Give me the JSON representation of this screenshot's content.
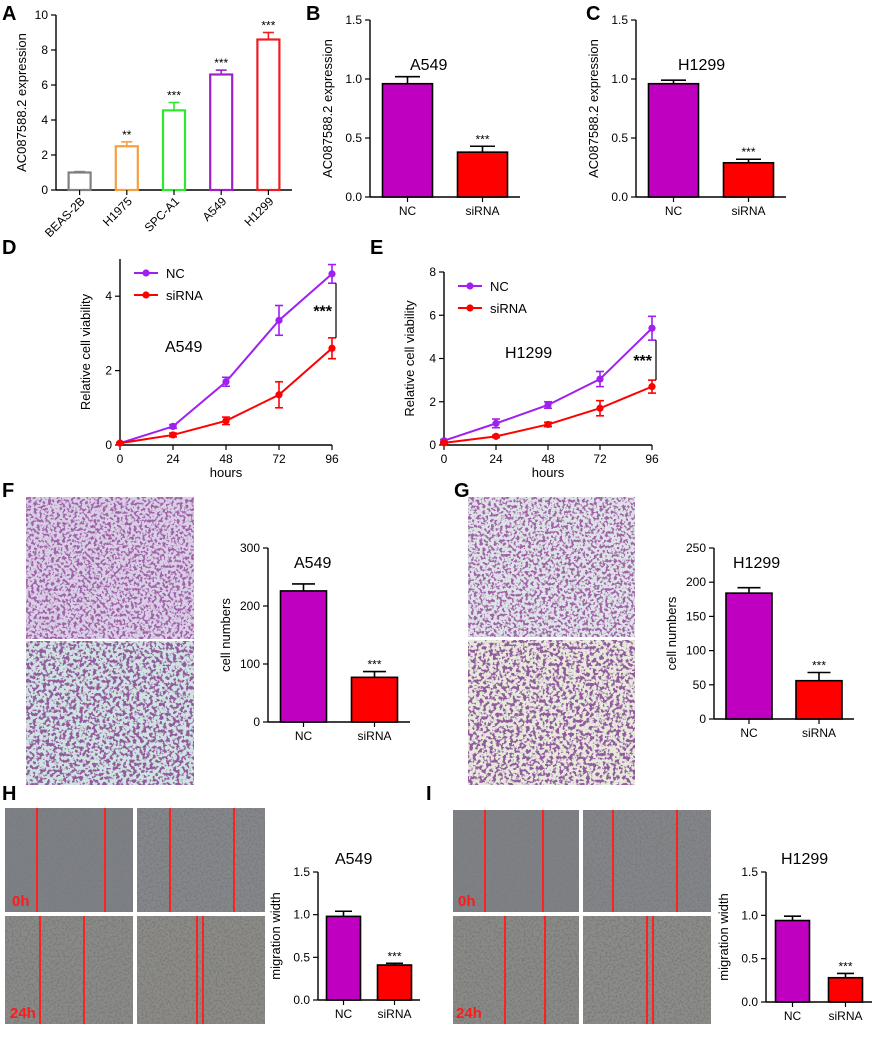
{
  "panels": {
    "A": "A",
    "B": "B",
    "C": "C",
    "D": "D",
    "E": "E",
    "F": "F",
    "G": "G",
    "H": "H",
    "I": "I"
  },
  "chart_data": [
    {
      "id": "A",
      "type": "bar",
      "ylabel": "AC087588.2 expression",
      "ylim": [
        0,
        10
      ],
      "yticks": [
        0,
        2,
        4,
        6,
        8,
        10
      ],
      "categories": [
        "BEAS-2B",
        "H1975",
        "SPC-A1",
        "A549",
        "H1299"
      ],
      "values": [
        1.0,
        2.5,
        4.55,
        6.6,
        8.6
      ],
      "errors": [
        0.05,
        0.25,
        0.45,
        0.25,
        0.4
      ],
      "colors": [
        "#808080",
        "#f5a040",
        "#2ee82e",
        "#a020c8",
        "#ee1c24"
      ],
      "significance": [
        "",
        "**",
        "***",
        "***",
        "***"
      ]
    },
    {
      "id": "B",
      "type": "bar",
      "inner_title": "A549",
      "ylabel": "AC087588.2 expression",
      "ylim": [
        0,
        1.5
      ],
      "yticks": [
        0.0,
        0.5,
        1.0,
        1.5
      ],
      "categories": [
        "NC",
        "siRNA"
      ],
      "values": [
        0.96,
        0.38
      ],
      "errors": [
        0.06,
        0.05
      ],
      "colors": [
        "#c000c0",
        "#ff0000"
      ],
      "significance": [
        "",
        "***"
      ]
    },
    {
      "id": "C",
      "type": "bar",
      "inner_title": "H1299",
      "ylabel": "AC087588.2 expression",
      "ylim": [
        0,
        1.5
      ],
      "yticks": [
        0.0,
        0.5,
        1.0,
        1.5
      ],
      "categories": [
        "NC",
        "siRNA"
      ],
      "values": [
        0.96,
        0.29
      ],
      "errors": [
        0.03,
        0.03
      ],
      "colors": [
        "#c000c0",
        "#ff0000"
      ],
      "significance": [
        "",
        "***"
      ]
    },
    {
      "id": "D",
      "type": "line",
      "inner_title": "A549",
      "xlabel": "hours",
      "ylabel": "Relative cell viability",
      "xlim": [
        0,
        96
      ],
      "ylim": [
        0,
        5
      ],
      "xticks": [
        0,
        24,
        48,
        72,
        96
      ],
      "yticks": [
        0,
        2,
        4
      ],
      "x": [
        0,
        24,
        48,
        72,
        96
      ],
      "series": [
        {
          "name": "NC",
          "color": "#a020f0",
          "values": [
            0.05,
            0.5,
            1.7,
            3.35,
            4.6
          ],
          "errors": [
            0.02,
            0.05,
            0.12,
            0.4,
            0.25
          ]
        },
        {
          "name": "siRNA",
          "color": "#ff0000",
          "values": [
            0.05,
            0.27,
            0.65,
            1.35,
            2.6
          ],
          "errors": [
            0.02,
            0.05,
            0.1,
            0.35,
            0.28
          ]
        }
      ],
      "significance": "***"
    },
    {
      "id": "E",
      "type": "line",
      "inner_title": "H1299",
      "xlabel": "hours",
      "ylabel": "Relative cell viability",
      "xlim": [
        0,
        96
      ],
      "ylim": [
        0,
        8
      ],
      "xticks": [
        0,
        24,
        48,
        72,
        96
      ],
      "yticks": [
        0,
        2,
        4,
        6,
        8
      ],
      "x": [
        0,
        24,
        48,
        72,
        96
      ],
      "series": [
        {
          "name": "NC",
          "color": "#a020f0",
          "values": [
            0.2,
            1.0,
            1.85,
            3.05,
            5.4
          ],
          "errors": [
            0.05,
            0.2,
            0.15,
            0.35,
            0.55
          ]
        },
        {
          "name": "siRNA",
          "color": "#ff0000",
          "values": [
            0.1,
            0.4,
            0.95,
            1.7,
            2.7
          ],
          "errors": [
            0.03,
            0.05,
            0.1,
            0.35,
            0.3
          ]
        }
      ],
      "significance": "***"
    },
    {
      "id": "F",
      "type": "bar",
      "inner_title": "A549",
      "ylabel": "cell numbers",
      "ylim": [
        0,
        300
      ],
      "yticks": [
        0,
        100,
        200,
        300
      ],
      "categories": [
        "NC",
        "siRNA"
      ],
      "values": [
        226,
        77
      ],
      "errors": [
        12,
        10
      ],
      "colors": [
        "#c000c0",
        "#ff0000"
      ],
      "significance": [
        "",
        "***"
      ]
    },
    {
      "id": "G",
      "type": "bar",
      "inner_title": "H1299",
      "ylabel": "cell numbers",
      "ylim": [
        0,
        250
      ],
      "yticks": [
        0,
        50,
        100,
        150,
        200,
        250
      ],
      "categories": [
        "NC",
        "siRNA"
      ],
      "values": [
        184,
        56
      ],
      "errors": [
        8,
        12
      ],
      "colors": [
        "#c000c0",
        "#ff0000"
      ],
      "significance": [
        "",
        "***"
      ]
    },
    {
      "id": "H",
      "type": "bar",
      "inner_title": "A549",
      "ylabel": "migration width",
      "ylim": [
        0,
        1.5
      ],
      "yticks": [
        0.0,
        0.5,
        1.0,
        1.5
      ],
      "categories": [
        "NC",
        "siRNA"
      ],
      "values": [
        0.98,
        0.41
      ],
      "errors": [
        0.06,
        0.02
      ],
      "colors": [
        "#c000c0",
        "#ff0000"
      ],
      "significance": [
        "",
        "***"
      ]
    },
    {
      "id": "I",
      "type": "bar",
      "inner_title": "H1299",
      "ylabel": "migration width",
      "ylim": [
        0,
        1.5
      ],
      "yticks": [
        0.0,
        0.5,
        1.0,
        1.5
      ],
      "categories": [
        "NC",
        "siRNA"
      ],
      "values": [
        0.94,
        0.28
      ],
      "errors": [
        0.05,
        0.05
      ],
      "colors": [
        "#c000c0",
        "#ff0000"
      ],
      "significance": [
        "",
        "***"
      ]
    }
  ],
  "micrographs": {
    "wound_time_labels": [
      "0h",
      "24h"
    ]
  }
}
